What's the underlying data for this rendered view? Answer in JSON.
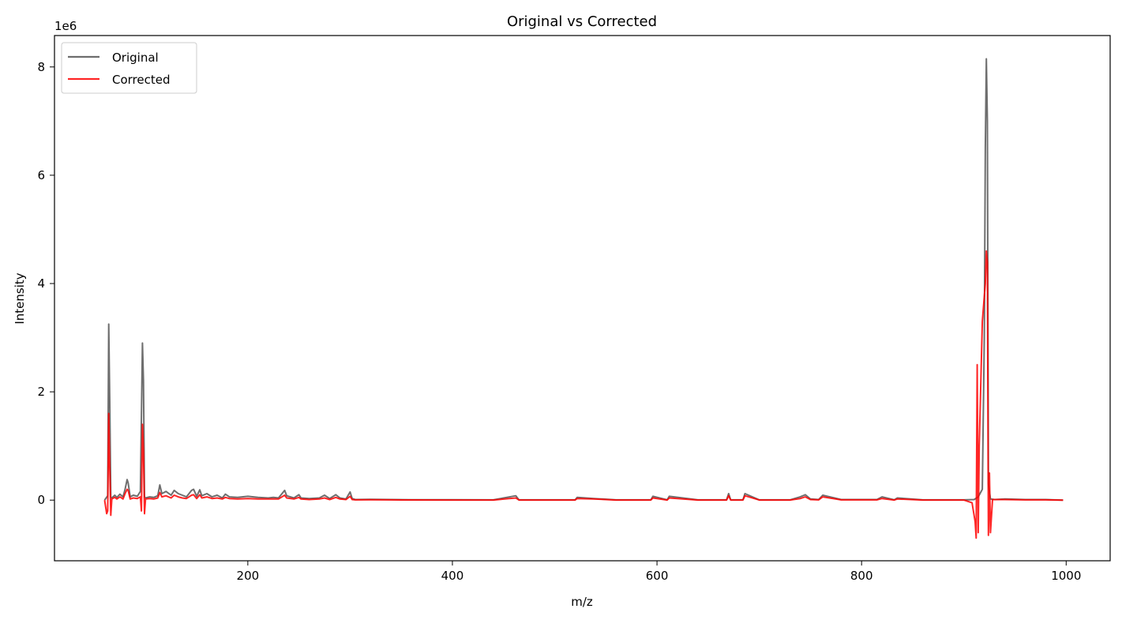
{
  "chart_data": {
    "type": "line",
    "title": "Original vs Corrected",
    "xlabel": "m/z",
    "ylabel": "Intensity",
    "y_offset_label": "1e6",
    "xlim": [
      11,
      1043
    ],
    "ylim": [
      -1120000,
      8580000
    ],
    "x_ticks": [
      200,
      400,
      600,
      800,
      1000
    ],
    "x_tick_labels": [
      "200",
      "400",
      "600",
      "800",
      "1000"
    ],
    "y_ticks": [
      0,
      2000000,
      4000000,
      6000000,
      8000000
    ],
    "y_tick_labels": [
      "0",
      "2",
      "4",
      "6",
      "8"
    ],
    "grid": false,
    "legend": "top-left",
    "series": [
      {
        "name": "Original",
        "color": "#555555",
        "x": [
          60,
          63,
          64,
          65,
          66,
          67,
          70,
          72,
          75,
          78,
          80,
          82,
          83,
          85,
          88,
          92,
          95,
          97,
          98,
          99,
          100,
          104,
          108,
          112,
          114,
          116,
          120,
          125,
          128,
          132,
          136,
          140,
          145,
          147,
          150,
          153,
          155,
          160,
          165,
          170,
          175,
          178,
          182,
          190,
          200,
          210,
          220,
          225,
          230,
          236,
          238,
          245,
          250,
          252,
          260,
          270,
          275,
          280,
          286,
          290,
          296,
          300,
          302,
          305,
          320,
          340,
          360,
          400,
          440,
          462,
          465,
          480,
          520,
          522,
          538,
          560,
          594,
          596,
          610,
          612,
          640,
          668,
          670,
          672,
          684,
          686,
          700,
          730,
          740,
          745,
          750,
          758,
          762,
          780,
          800,
          815,
          820,
          832,
          835,
          860,
          880,
          900,
          910,
          914,
          918,
          920,
          921,
          922,
          923,
          924,
          926,
          930,
          940,
          960,
          980,
          997
        ],
        "values": [
          0,
          80000,
          3250000,
          1800000,
          60000,
          40000,
          90000,
          50000,
          110000,
          60000,
          200000,
          380000,
          320000,
          60000,
          90000,
          70000,
          160000,
          2900000,
          2200000,
          60000,
          40000,
          60000,
          50000,
          80000,
          280000,
          120000,
          160000,
          90000,
          180000,
          120000,
          90000,
          60000,
          180000,
          200000,
          70000,
          190000,
          80000,
          120000,
          60000,
          90000,
          40000,
          110000,
          60000,
          50000,
          70000,
          50000,
          40000,
          50000,
          40000,
          180000,
          80000,
          40000,
          100000,
          40000,
          30000,
          40000,
          90000,
          30000,
          100000,
          40000,
          20000,
          150000,
          30000,
          10000,
          15000,
          10000,
          8000,
          6000,
          5000,
          80000,
          5000,
          4000,
          4000,
          50000,
          30000,
          4000,
          4000,
          70000,
          5000,
          70000,
          4000,
          4000,
          120000,
          5000,
          4000,
          120000,
          4000,
          4000,
          60000,
          100000,
          20000,
          10000,
          90000,
          10000,
          10000,
          10000,
          60000,
          5000,
          40000,
          5000,
          4000,
          5000,
          10000,
          60000,
          200000,
          3000000,
          6500000,
          8150000,
          7000000,
          300000,
          20000,
          10000,
          20000,
          10000,
          10000,
          0
        ]
      },
      {
        "name": "Corrected",
        "color": "#ff0000",
        "x": [
          60,
          62,
          63,
          64,
          65,
          66,
          67,
          70,
          72,
          75,
          78,
          80,
          82,
          83,
          85,
          88,
          92,
          95,
          96,
          97,
          98,
          99,
          100,
          104,
          108,
          112,
          114,
          116,
          120,
          125,
          128,
          132,
          136,
          140,
          145,
          147,
          150,
          153,
          155,
          160,
          165,
          170,
          175,
          178,
          182,
          190,
          200,
          210,
          220,
          225,
          230,
          236,
          238,
          245,
          250,
          252,
          260,
          270,
          275,
          280,
          286,
          290,
          296,
          300,
          302,
          305,
          320,
          340,
          360,
          400,
          440,
          462,
          465,
          480,
          520,
          522,
          538,
          560,
          594,
          596,
          610,
          612,
          640,
          668,
          670,
          672,
          684,
          686,
          700,
          730,
          740,
          745,
          750,
          758,
          762,
          780,
          800,
          815,
          820,
          832,
          835,
          860,
          880,
          900,
          908,
          911,
          912,
          913,
          914,
          915,
          918,
          921,
          922,
          923,
          924,
          925,
          926,
          928,
          930,
          940,
          960,
          980,
          997
        ],
        "values": [
          0,
          -250000,
          -200000,
          1600000,
          600000,
          -280000,
          20000,
          50000,
          20000,
          60000,
          20000,
          120000,
          200000,
          180000,
          20000,
          40000,
          30000,
          60000,
          -200000,
          1400000,
          900000,
          -250000,
          20000,
          30000,
          20000,
          40000,
          140000,
          60000,
          80000,
          40000,
          90000,
          60000,
          40000,
          30000,
          90000,
          100000,
          30000,
          100000,
          40000,
          60000,
          30000,
          40000,
          20000,
          50000,
          30000,
          20000,
          30000,
          20000,
          20000,
          20000,
          20000,
          90000,
          40000,
          20000,
          50000,
          20000,
          10000,
          20000,
          40000,
          10000,
          50000,
          20000,
          10000,
          70000,
          10000,
          5000,
          6000,
          4000,
          3000,
          2000,
          2000,
          40000,
          2000,
          2000,
          2000,
          30000,
          20000,
          2000,
          2000,
          40000,
          2000,
          40000,
          2000,
          2000,
          80000,
          2000,
          2000,
          80000,
          2000,
          2000,
          30000,
          60000,
          10000,
          5000,
          60000,
          5000,
          5000,
          5000,
          30000,
          2000,
          20000,
          2000,
          2000,
          2000,
          -50000,
          -400000,
          -700000,
          2500000,
          -600000,
          1000000,
          3300000,
          4000000,
          4600000,
          4400000,
          -650000,
          500000,
          -600000,
          10000,
          10000,
          10000,
          5000,
          5000,
          0
        ]
      }
    ]
  }
}
